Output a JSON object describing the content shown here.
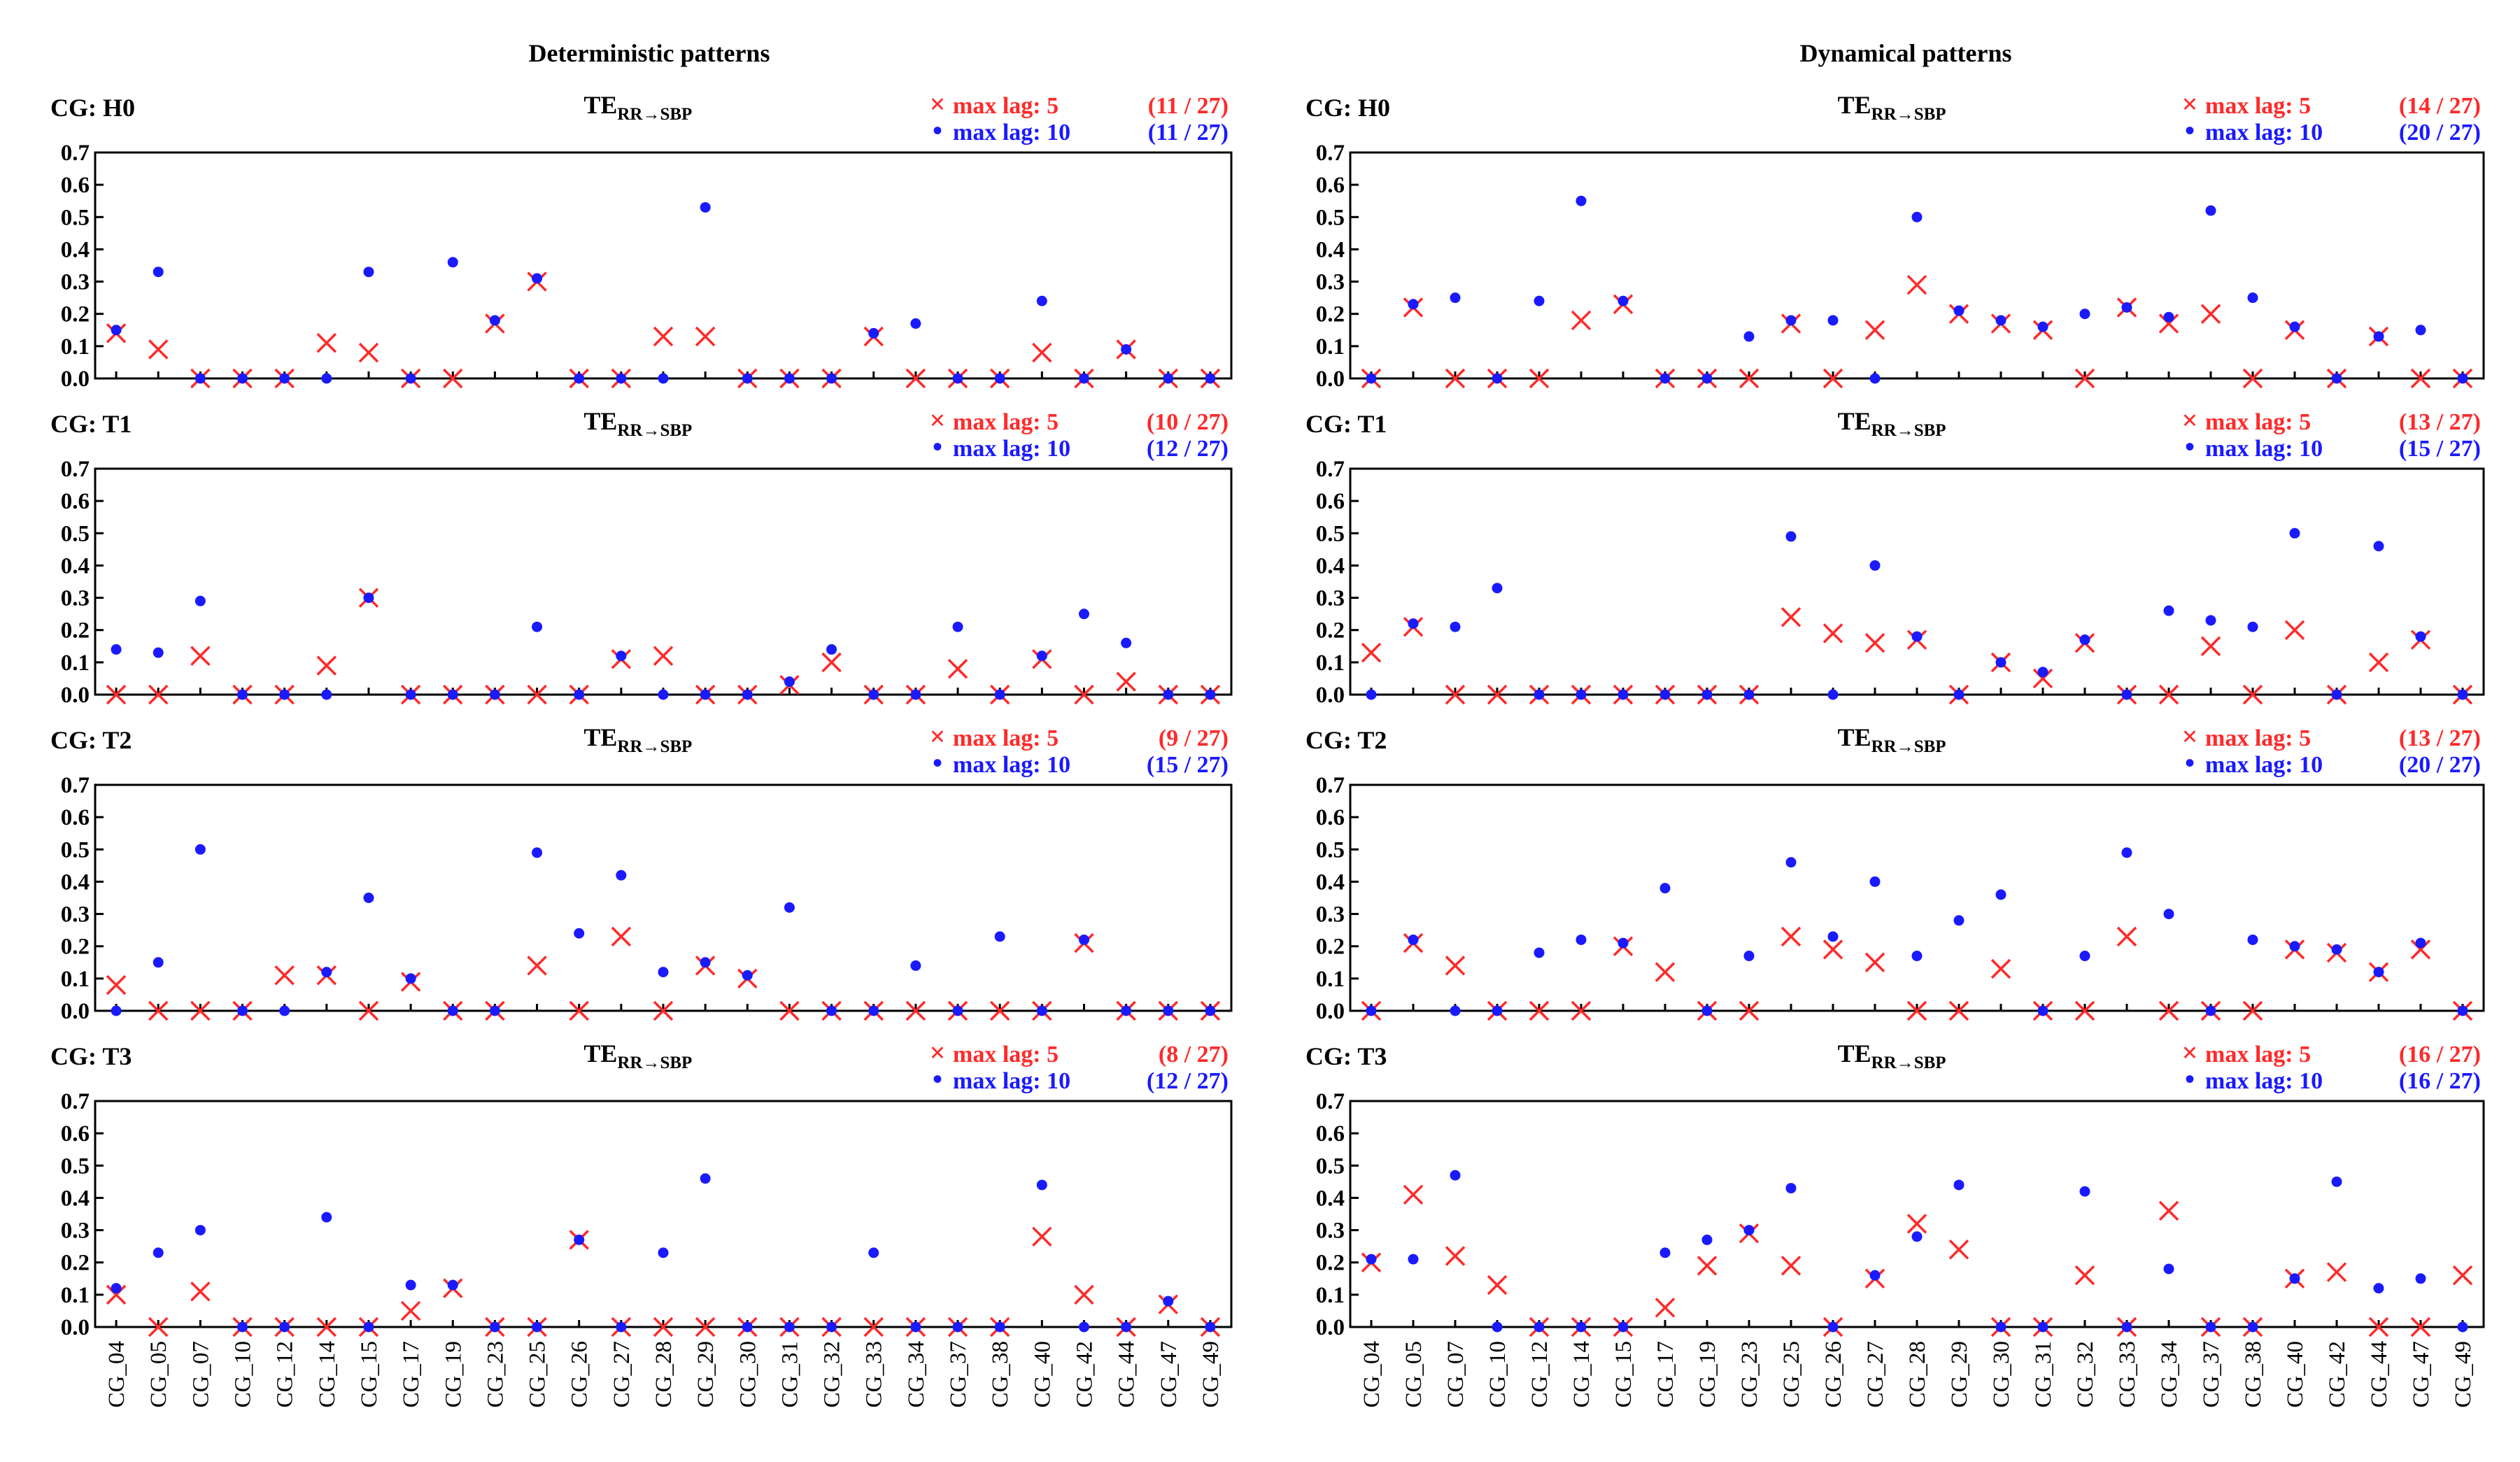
{
  "figure": {
    "column_titles": [
      "Deterministic patterns",
      "Dynamical patterns"
    ],
    "categories": [
      "CG_04",
      "CG_05",
      "CG_07",
      "CG_10",
      "CG_12",
      "CG_14",
      "CG_15",
      "CG_17",
      "CG_19",
      "CG_23",
      "CG_25",
      "CG_26",
      "CG_27",
      "CG_28",
      "CG_29",
      "CG_30",
      "CG_31",
      "CG_32",
      "CG_33",
      "CG_34",
      "CG_37",
      "CG_38",
      "CG_40",
      "CG_42",
      "CG_44",
      "CG_47",
      "CG_49"
    ],
    "yticks": [
      "0.0",
      "0.1",
      "0.2",
      "0.3",
      "0.4",
      "0.5",
      "0.6",
      "0.7"
    ],
    "panel_title": "TE",
    "panel_title_sub": "RR→SBP",
    "legend_marker_cross": "×",
    "legend_marker_dot": "•",
    "colors": {
      "lag5": "#ff2a2a",
      "lag10": "#1a1aff",
      "axis": "#000000"
    }
  },
  "chart_data": [
    {
      "type": "scatter",
      "column": "Deterministic patterns",
      "label": "CG: H0",
      "title": "TE_RR→SBP",
      "ylim": [
        0,
        0.7
      ],
      "series": [
        {
          "name": "max lag: 5",
          "count": "(11 / 27)",
          "marker": "x",
          "values": [
            0.14,
            0.09,
            0,
            0,
            0,
            0.11,
            0.08,
            0,
            0,
            0.17,
            0.3,
            0,
            0,
            0.13,
            0.13,
            0,
            0,
            0,
            0.13,
            0,
            0,
            0,
            0.08,
            0,
            0.09,
            0,
            0
          ]
        },
        {
          "name": "max lag: 10",
          "count": "(11 / 27)",
          "marker": "dot",
          "values": [
            0.15,
            0.33,
            0,
            0,
            0,
            0,
            0.33,
            0,
            0.36,
            0.18,
            0.31,
            0,
            0,
            0,
            0.53,
            0,
            0,
            0,
            0.14,
            0.17,
            0,
            0,
            0.24,
            0,
            0.09,
            0,
            0
          ]
        }
      ]
    },
    {
      "type": "scatter",
      "column": "Dynamical patterns",
      "label": "CG: H0",
      "title": "TE_RR→SBP",
      "ylim": [
        0,
        0.7
      ],
      "series": [
        {
          "name": "max lag: 5",
          "count": "(14 / 27)",
          "marker": "x",
          "values": [
            0,
            0.22,
            0,
            0,
            0,
            0.18,
            0.23,
            0,
            0,
            0,
            0.17,
            0,
            0.15,
            0.29,
            0.2,
            0.17,
            0.15,
            0,
            0.22,
            0.17,
            0.2,
            0,
            0.15,
            0,
            0.13,
            0,
            0
          ]
        },
        {
          "name": "max lag: 10",
          "count": "(20 / 27)",
          "marker": "dot",
          "values": [
            0,
            0.23,
            0.25,
            0,
            0.24,
            0.55,
            0.24,
            0,
            0,
            0.13,
            0.18,
            0.18,
            0,
            0.5,
            0.21,
            0.18,
            0.16,
            0.2,
            0.22,
            0.19,
            0.52,
            0.25,
            0.16,
            0,
            0.13,
            0.15,
            0
          ]
        }
      ]
    },
    {
      "type": "scatter",
      "column": "Deterministic patterns",
      "label": "CG: T1",
      "title": "TE_RR→SBP",
      "ylim": [
        0,
        0.7
      ],
      "series": [
        {
          "name": "max lag: 5",
          "count": "(10 / 27)",
          "marker": "x",
          "values": [
            0,
            0,
            0.12,
            0,
            0,
            0.09,
            0.3,
            0,
            0,
            0,
            0,
            0,
            0.11,
            0.12,
            0,
            0,
            0.03,
            0.1,
            0,
            0,
            0.08,
            0,
            0.11,
            0,
            0.04,
            0,
            0
          ]
        },
        {
          "name": "max lag: 10",
          "count": "(12 / 27)",
          "marker": "dot",
          "values": [
            0.14,
            0.13,
            0.29,
            0,
            0,
            0,
            0.3,
            0,
            0,
            0,
            0.21,
            0,
            0.12,
            0,
            0,
            0,
            0.04,
            0.14,
            0,
            0,
            0.21,
            0,
            0.12,
            0.25,
            0.16,
            0,
            0
          ]
        }
      ]
    },
    {
      "type": "scatter",
      "column": "Dynamical patterns",
      "label": "CG: T1",
      "title": "TE_RR→SBP",
      "ylim": [
        0,
        0.7
      ],
      "series": [
        {
          "name": "max lag: 5",
          "count": "(13 / 27)",
          "marker": "x",
          "values": [
            0.13,
            0.21,
            0,
            0,
            0,
            0,
            0,
            0,
            0,
            0,
            0.24,
            0.19,
            0.16,
            0.17,
            0,
            0.1,
            0.05,
            0.16,
            0,
            0,
            0.15,
            0,
            0.2,
            0,
            0.1,
            0.17,
            0
          ]
        },
        {
          "name": "max lag: 10",
          "count": "(15 / 27)",
          "marker": "dot",
          "values": [
            0,
            0.22,
            0.21,
            0.33,
            0,
            0,
            0,
            0,
            0,
            0,
            0.49,
            0,
            0.4,
            0.18,
            0,
            0.1,
            0.07,
            0.17,
            0,
            0.26,
            0.23,
            0.21,
            0.5,
            0,
            0.46,
            0.18,
            0
          ]
        }
      ]
    },
    {
      "type": "scatter",
      "column": "Deterministic patterns",
      "label": "CG: T2",
      "title": "TE_RR→SBP",
      "ylim": [
        0,
        0.7
      ],
      "series": [
        {
          "name": "max lag: 5",
          "count": "(9 / 27)",
          "marker": "x",
          "values": [
            0.08,
            0,
            0,
            0,
            0.11,
            0.11,
            0,
            0.09,
            0,
            0,
            0.14,
            0,
            0.23,
            0,
            0.14,
            0.1,
            0,
            0,
            0,
            0,
            0,
            0,
            0,
            0.21,
            0,
            0,
            0
          ]
        },
        {
          "name": "max lag: 10",
          "count": "(15 / 27)",
          "marker": "dot",
          "values": [
            0,
            0.15,
            0.5,
            0,
            0,
            0.12,
            0.35,
            0.1,
            0,
            0,
            0.49,
            0.24,
            0.42,
            0.12,
            0.15,
            0.11,
            0.32,
            0,
            0,
            0.14,
            0,
            0.23,
            0,
            0.22,
            0,
            0,
            0
          ]
        }
      ]
    },
    {
      "type": "scatter",
      "column": "Dynamical patterns",
      "label": "CG: T2",
      "title": "TE_RR→SBP",
      "ylim": [
        0,
        0.7
      ],
      "series": [
        {
          "name": "max lag: 5",
          "count": "(13 / 27)",
          "marker": "x",
          "values": [
            0,
            0.21,
            0.14,
            0,
            0,
            0,
            0.2,
            0.12,
            0,
            0,
            0.23,
            0.19,
            0.15,
            0,
            0,
            0.13,
            0,
            0,
            0.23,
            0,
            0,
            0,
            0.19,
            0.18,
            0.12,
            0.19,
            0
          ]
        },
        {
          "name": "max lag: 10",
          "count": "(20 / 27)",
          "marker": "dot",
          "values": [
            0,
            0.22,
            0,
            0,
            0.18,
            0.22,
            0.21,
            0.38,
            0,
            0.17,
            0.46,
            0.23,
            0.4,
            0.17,
            0.28,
            0.36,
            0,
            0.17,
            0.49,
            0.3,
            0,
            0.22,
            0.2,
            0.19,
            0.12,
            0.21,
            0
          ]
        }
      ]
    },
    {
      "type": "scatter",
      "column": "Deterministic patterns",
      "label": "CG: T3",
      "title": "TE_RR→SBP",
      "ylim": [
        0,
        0.7
      ],
      "series": [
        {
          "name": "max lag: 5",
          "count": "(8 / 27)",
          "marker": "x",
          "values": [
            0.1,
            0,
            0.11,
            0,
            0,
            0,
            0,
            0.05,
            0.12,
            0,
            0,
            0.27,
            0,
            0,
            0,
            0,
            0,
            0,
            0,
            0,
            0,
            0,
            0.28,
            0.1,
            0,
            0.07,
            0
          ]
        },
        {
          "name": "max lag: 10",
          "count": "(12 / 27)",
          "marker": "dot",
          "values": [
            0.12,
            0.23,
            0.3,
            0,
            0,
            0.34,
            0,
            0.13,
            0.13,
            0,
            0,
            0.27,
            0,
            0.23,
            0.46,
            0,
            0,
            0,
            0.23,
            0,
            0,
            0,
            0.44,
            0,
            0,
            0.08,
            0
          ]
        }
      ]
    },
    {
      "type": "scatter",
      "column": "Dynamical patterns",
      "label": "CG: T3",
      "title": "TE_RR→SBP",
      "ylim": [
        0,
        0.7
      ],
      "series": [
        {
          "name": "max lag: 5",
          "count": "(16 / 27)",
          "marker": "x",
          "values": [
            0.2,
            0.41,
            0.22,
            0.13,
            0,
            0,
            0,
            0.06,
            0.19,
            0.29,
            0.19,
            0,
            0.15,
            0.32,
            0.24,
            0,
            0,
            0.16,
            0,
            0.36,
            0,
            0,
            0.15,
            0.17,
            0,
            0,
            0.16
          ]
        },
        {
          "name": "max lag: 10",
          "count": "(16 / 27)",
          "marker": "dot",
          "values": [
            0.21,
            0.21,
            0.47,
            0,
            0,
            0,
            0,
            0.23,
            0.27,
            0.3,
            0.43,
            0,
            0.16,
            0.28,
            0.44,
            0,
            0,
            0.42,
            0,
            0.18,
            0,
            0,
            0.15,
            0.45,
            0.12,
            0.15,
            0
          ]
        }
      ]
    }
  ]
}
